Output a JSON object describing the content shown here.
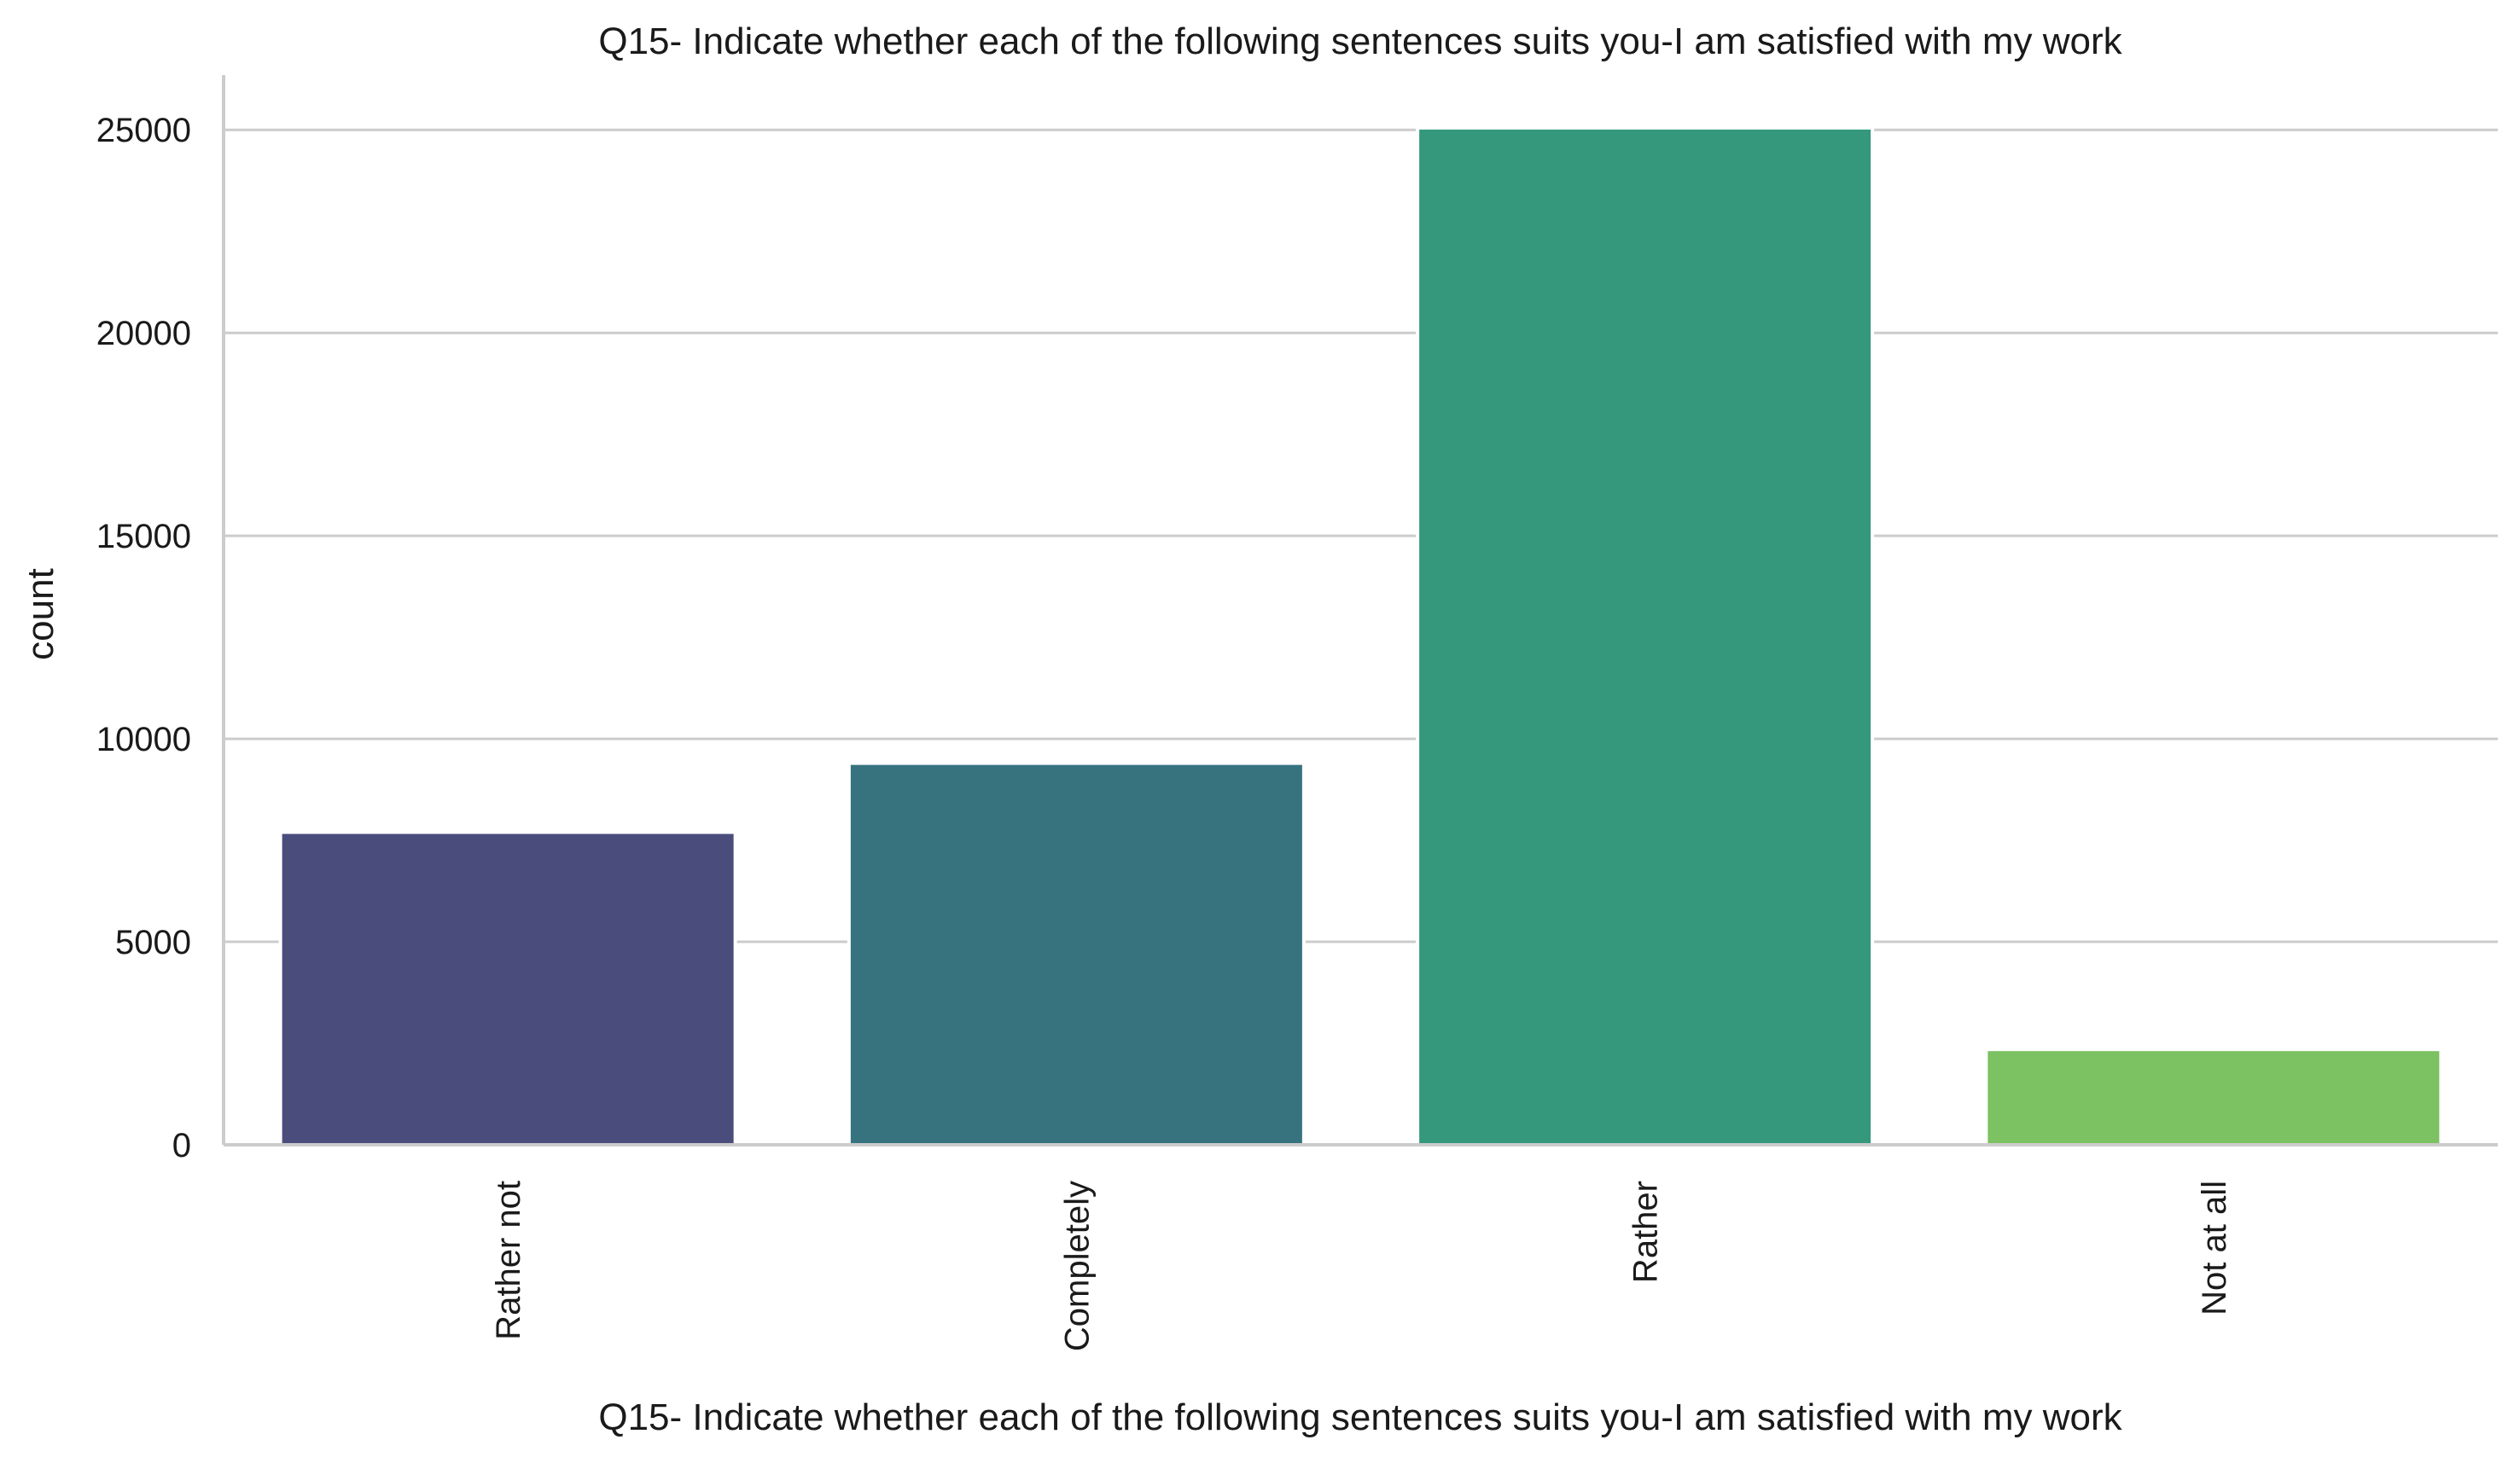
{
  "chart_data": {
    "type": "bar",
    "title": "Q15- Indicate whether each of the following sentences suits you-I am satisfied with my work",
    "xlabel": "Q15- Indicate whether each of the following sentences suits you-I am satisfied with my work",
    "ylabel": "count",
    "categories": [
      "Rather not",
      "Completely",
      "Rather",
      "Not at all"
    ],
    "values": [
      7700,
      9400,
      25050,
      2350
    ],
    "colors": [
      "#4a4d7c",
      "#36737f",
      "#35987c",
      "#7cc162"
    ],
    "ylim": [
      0,
      26350
    ],
    "yticks": [
      0,
      5000,
      10000,
      15000,
      20000,
      25000
    ],
    "ytick_labels": [
      "0",
      "5000",
      "10000",
      "15000",
      "20000",
      "25000"
    ],
    "grid": true,
    "gridline_color": "#cccccc",
    "axis_color": "#cccccc",
    "x_tick_rotation": "vertical"
  }
}
